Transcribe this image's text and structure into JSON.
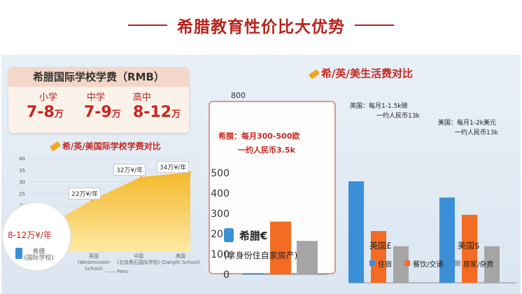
{
  "header": {
    "title": "希腊教育性价比大优势"
  },
  "fee_card": {
    "title": "希腊国际学校学费（RMB）",
    "levels": [
      {
        "level": "小学",
        "amount": "7-8",
        "unit": "万"
      },
      {
        "level": "中学",
        "amount": "7-9",
        "unit": "万"
      },
      {
        "level": "高中",
        "amount": "8-12",
        "unit": "万"
      }
    ]
  },
  "left_chart": {
    "title": "希/英/美国际学校学费对比",
    "callouts": [
      "22万¥/年",
      "32万¥/年",
      "34万¥/年",
      "8-12万¥/年"
    ],
    "legend": "Fees",
    "categories": [
      {
        "name": "希腊",
        "sub": "(国际学校)"
      },
      {
        "name": "英国",
        "sub": "(Westminster School)"
      },
      {
        "name": "中国",
        "sub": "(北京鼎石国际学校)"
      },
      {
        "name": "美国",
        "sub": "(Dwight School)"
      }
    ]
  },
  "chart_data": [
    {
      "type": "area",
      "title": "希/英/美国际学校学费对比",
      "categories": [
        "希腊",
        "英国",
        "中国",
        "美国"
      ],
      "values": [
        10,
        22,
        32,
        34
      ],
      "ylim": [
        0,
        40
      ],
      "yticks": [
        0,
        5,
        10,
        15,
        20,
        25,
        30,
        35,
        40
      ],
      "series": [
        {
          "name": "Fees",
          "values": [
            10,
            22,
            32,
            34
          ]
        }
      ],
      "color": "#f6c13b"
    },
    {
      "type": "bar",
      "title": "希/英/美生活费对比",
      "ylim": [
        0,
        800
      ],
      "yticks": [
        0,
        100,
        200,
        300,
        400,
        500,
        800
      ],
      "categories": [
        "希腊€",
        "英国£",
        "美国$"
      ],
      "series": [
        {
          "name": "住宿",
          "values": [
            5,
            500,
            420
          ]
        },
        {
          "name": "餐饮/交通",
          "values": [
            260,
            255,
            335
          ]
        },
        {
          "name": "居家/杂费",
          "values": [
            165,
            180,
            180
          ]
        }
      ],
      "colors": [
        "#3a8fd6",
        "#f46b23",
        "#a5a5a5"
      ]
    }
  ],
  "right_chart": {
    "title": "希/英/美生活费对比",
    "greece_note_1": "希腊：每月300-500欧",
    "greece_note_2": "一约人民币3.5k",
    "greece_label": "希腊€",
    "greece_sub": "(拿身份住自家房产)",
    "uk_note_1": "英国：每月1-1.5k磅",
    "uk_note_2": "一约人民币13k",
    "us_note_1": "美国：每月1-2k美元",
    "us_note_2": "一约人民币13k",
    "uk_label": "英国£",
    "us_label": "美国$",
    "legend": [
      "住宿",
      "餐饮/交通",
      "居家/杂费"
    ],
    "axis_top": "800"
  }
}
